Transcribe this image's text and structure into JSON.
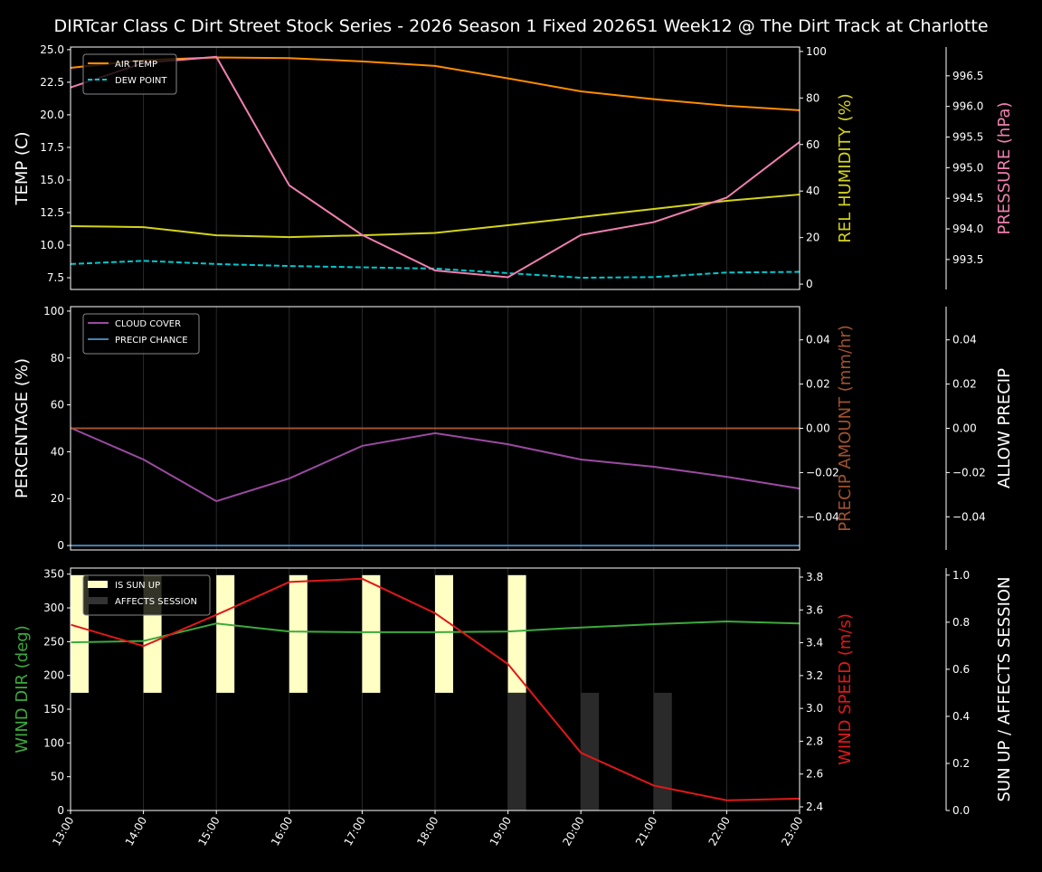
{
  "title": "DIRTcar Class C Dirt Street Stock Series - 2026 Season 1 Fixed 2026S1 Week12 @ The Dirt Track at Charlotte",
  "colors": {
    "background": "#000000",
    "air_temp": "#ff8c00",
    "dew_point": "#00c8d0",
    "rel_humidity": "#d4d41a",
    "pressure": "#f080b0",
    "cloud_cover": "#9a4aa0",
    "precip_chance": "#4682b4",
    "precip_amount": "#a0522d",
    "wind_dir": "#3caa3c",
    "wind_speed": "#e01818",
    "sun_up": "#ffffc4",
    "affects_session": "#2a2a2a"
  },
  "chart_data": [
    {
      "type": "line",
      "x": [
        "13:00",
        "14:00",
        "15:00",
        "16:00",
        "17:00",
        "18:00",
        "19:00",
        "20:00",
        "21:00",
        "22:00",
        "23:00"
      ],
      "xlim": [
        "13:00",
        "23:00"
      ],
      "grid": "vertical",
      "legend_placement": "top-left",
      "axes": {
        "left": {
          "label": "TEMP (C)",
          "ylim": [
            6.6,
            25.2
          ],
          "ticks": [
            "7.5",
            "10.0",
            "12.5",
            "15.0",
            "17.5",
            "20.0",
            "22.5",
            "25.0"
          ]
        },
        "right": {
          "label": "REL HUMIDITY (%)",
          "ylim": [
            -2.3,
            101.9
          ],
          "ticks": [
            "0",
            "20",
            "40",
            "60",
            "80",
            "100"
          ]
        },
        "right2": {
          "label": "PRESSURE (hPa)",
          "ylim": [
            993.01,
            996.97
          ],
          "ticks": [
            "993.5",
            "994.0",
            "994.5",
            "995.0",
            "995.5",
            "996.0",
            "996.5"
          ]
        }
      },
      "series": [
        {
          "name": "AIR TEMP",
          "axis": "left",
          "style": "solid",
          "values": [
            23.6,
            24.2,
            24.4,
            24.35,
            24.1,
            23.75,
            22.8,
            21.8,
            21.2,
            20.7,
            20.35
          ]
        },
        {
          "name": "DEW POINT",
          "axis": "left",
          "style": "dashed",
          "values": [
            8.55,
            8.8,
            8.55,
            8.4,
            8.3,
            8.2,
            7.85,
            7.5,
            7.55,
            7.9,
            7.95
          ]
        },
        {
          "axis": "right",
          "style": "solid",
          "values": [
            24.9,
            24.5,
            21.0,
            20.2,
            21.0,
            22.0,
            25.3,
            28.8,
            32.3,
            35.8,
            38.5
          ]
        },
        {
          "axis": "right2",
          "style": "solid",
          "values": [
            996.31,
            996.71,
            996.81,
            994.71,
            993.9,
            993.32,
            993.21,
            993.9,
            994.11,
            994.51,
            995.42
          ]
        }
      ]
    },
    {
      "type": "line",
      "x": [
        "13:00",
        "14:00",
        "15:00",
        "16:00",
        "17:00",
        "18:00",
        "19:00",
        "20:00",
        "21:00",
        "22:00",
        "23:00"
      ],
      "xlim": [
        "13:00",
        "23:00"
      ],
      "grid": "vertical",
      "legend_placement": "top-left",
      "axes": {
        "left": {
          "label": "PERCENTAGE (%)",
          "ylim": [
            -1.9,
            101.9
          ],
          "ticks": [
            "0",
            "20",
            "40",
            "60",
            "80",
            "100"
          ]
        },
        "right": {
          "label": "PRECIP AMOUNT (mm/hr)",
          "ylim": [
            -0.055,
            0.055
          ],
          "ticks": [
            "−0.04",
            "−0.02",
            "0.00",
            "0.02",
            "0.04"
          ]
        },
        "right2": {
          "label": "ALLOW PRECIP",
          "ylim": [
            -0.055,
            0.055
          ],
          "ticks": [
            "−0.04",
            "−0.02",
            "0.00",
            "0.02",
            "0.04"
          ]
        }
      },
      "series": [
        {
          "name": "CLOUD COVER",
          "axis": "left",
          "style": "solid",
          "values": [
            50.2,
            36.7,
            18.9,
            28.6,
            42.5,
            47.9,
            43.2,
            36.7,
            33.6,
            29.3,
            24.3
          ]
        },
        {
          "name": "PRECIP CHANCE",
          "axis": "left",
          "style": "solid",
          "values": [
            0,
            0,
            0,
            0,
            0,
            0,
            0,
            0,
            0,
            0,
            0
          ]
        },
        {
          "axis": "right",
          "style": "solid",
          "values": [
            0,
            0,
            0,
            0,
            0,
            0,
            0,
            0,
            0,
            0,
            0
          ]
        }
      ]
    },
    {
      "type": "line+bar",
      "x": [
        "13:00",
        "14:00",
        "15:00",
        "16:00",
        "17:00",
        "18:00",
        "19:00",
        "20:00",
        "21:00",
        "22:00",
        "23:00"
      ],
      "xlim": [
        "13:00",
        "23:00"
      ],
      "grid": "vertical",
      "legend_placement": "top-left",
      "axes": {
        "left": {
          "label": "WIND DIR (deg)",
          "ylim": [
            0,
            359
          ],
          "ticks": [
            "0",
            "50",
            "100",
            "150",
            "200",
            "250",
            "300",
            "350"
          ]
        },
        "right": {
          "label": "WIND SPEED (m/s)",
          "ylim": [
            2.378,
            3.855
          ],
          "ticks": [
            "2.4",
            "2.6",
            "2.8",
            "3.0",
            "3.2",
            "3.4",
            "3.6",
            "3.8"
          ]
        },
        "right2": {
          "label": "SUN UP / AFFECTS SESSION",
          "ylim": [
            0,
            1.03
          ],
          "ticks": [
            "0.0",
            "0.2",
            "0.4",
            "0.6",
            "0.8",
            "1.0"
          ]
        }
      },
      "bars": [
        {
          "name": "IS SUN UP",
          "axis": "right2",
          "range": [
            0.5,
            1.0
          ],
          "values": [
            1,
            1,
            1,
            1,
            1,
            1,
            1,
            0,
            0,
            0,
            0
          ]
        },
        {
          "name": "AFFECTS SESSION",
          "axis": "right2",
          "range": [
            0,
            0.5
          ],
          "values": [
            0,
            0,
            0,
            0,
            0,
            0,
            1,
            1,
            1,
            0,
            0
          ]
        }
      ],
      "series": [
        {
          "axis": "left",
          "style": "solid",
          "values": [
            249,
            251,
            277,
            265,
            264,
            264,
            265,
            271,
            276,
            280,
            277
          ]
        },
        {
          "axis": "right",
          "style": "solid",
          "values": [
            3.51,
            3.38,
            3.57,
            3.77,
            3.79,
            3.58,
            3.27,
            2.73,
            2.53,
            2.44,
            2.45
          ]
        }
      ]
    }
  ]
}
